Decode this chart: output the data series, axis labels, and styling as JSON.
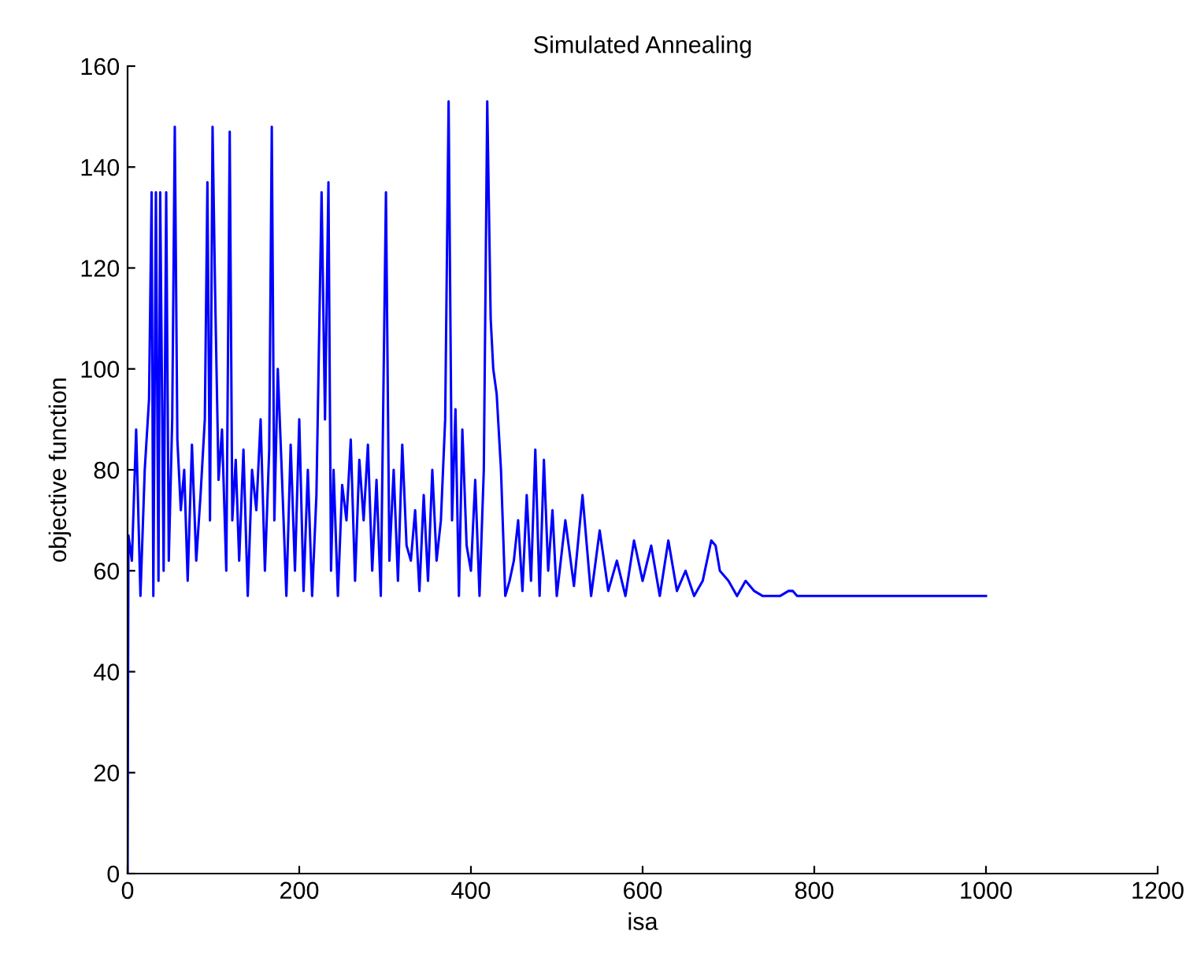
{
  "chart_data": {
    "type": "line",
    "title": "Simulated Annealing",
    "xlabel": "isa",
    "ylabel": "objective function",
    "xlim": [
      0,
      1200
    ],
    "xticks": [
      0,
      200,
      400,
      600,
      800,
      1000,
      1200
    ],
    "ylim": [
      0,
      160
    ],
    "yticks": [
      0,
      20,
      40,
      60,
      80,
      100,
      120,
      140,
      160
    ],
    "grid": false,
    "legend": false,
    "series": [
      {
        "color": "#0000ff",
        "x": [
          0,
          1,
          5,
          10,
          15,
          20,
          25,
          28,
          30,
          33,
          36,
          38,
          42,
          45,
          48,
          52,
          55,
          58,
          62,
          66,
          70,
          75,
          80,
          85,
          90,
          93,
          96,
          99,
          102,
          106,
          110,
          115,
          119,
          122,
          126,
          130,
          135,
          140,
          145,
          150,
          155,
          160,
          165,
          168,
          171,
          175,
          180,
          185,
          190,
          195,
          200,
          205,
          210,
          215,
          220,
          226,
          230,
          234,
          237,
          240,
          245,
          250,
          255,
          260,
          265,
          270,
          275,
          280,
          285,
          290,
          295,
          301,
          305,
          310,
          315,
          320,
          325,
          330,
          335,
          340,
          345,
          350,
          355,
          360,
          365,
          370,
          374,
          378,
          382,
          386,
          390,
          395,
          400,
          405,
          410,
          415,
          419,
          423,
          426,
          430,
          435,
          440,
          445,
          450,
          455,
          460,
          465,
          470,
          475,
          480,
          485,
          490,
          495,
          500,
          510,
          520,
          530,
          540,
          550,
          560,
          570,
          580,
          590,
          600,
          610,
          620,
          630,
          640,
          650,
          660,
          670,
          680,
          685,
          690,
          700,
          710,
          720,
          730,
          740,
          750,
          760,
          770,
          775,
          780,
          1000
        ],
        "values": [
          0,
          67,
          62,
          88,
          55,
          80,
          94,
          135,
          55,
          135,
          58,
          135,
          60,
          135,
          62,
          90,
          148,
          86,
          72,
          80,
          58,
          85,
          62,
          75,
          90,
          137,
          70,
          148,
          115,
          78,
          88,
          60,
          147,
          70,
          82,
          62,
          84,
          55,
          80,
          72,
          90,
          60,
          84,
          148,
          70,
          100,
          78,
          55,
          85,
          60,
          90,
          56,
          80,
          55,
          75,
          135,
          90,
          137,
          60,
          80,
          55,
          77,
          70,
          86,
          58,
          82,
          70,
          85,
          60,
          78,
          55,
          135,
          62,
          80,
          58,
          85,
          65,
          62,
          72,
          56,
          75,
          58,
          80,
          62,
          70,
          90,
          153,
          70,
          92,
          55,
          88,
          65,
          60,
          78,
          55,
          80,
          153,
          110,
          100,
          95,
          80,
          55,
          58,
          62,
          70,
          56,
          75,
          58,
          84,
          55,
          82,
          60,
          72,
          55,
          70,
          57,
          75,
          55,
          68,
          56,
          62,
          55,
          66,
          58,
          65,
          55,
          66,
          56,
          60,
          55,
          58,
          66,
          65,
          60,
          58,
          55,
          58,
          56,
          55,
          55,
          55,
          56,
          56,
          55,
          55
        ]
      }
    ]
  }
}
